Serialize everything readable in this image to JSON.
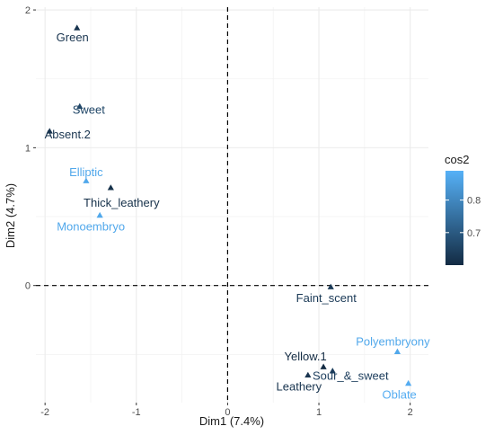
{
  "chart_data": {
    "type": "scatter",
    "xlabel": "Dim1 (7.4%)",
    "ylabel": "Dim2 (4.7%)",
    "xlim": [
      -2.1,
      2.2
    ],
    "ylim": [
      -0.85,
      2.02
    ],
    "xticks": [
      -2,
      -1,
      0,
      1,
      2
    ],
    "yticks": [
      0,
      1,
      2
    ],
    "grid": true,
    "reference_lines": {
      "x": 0,
      "y": 0,
      "style": "dashed"
    },
    "marker": "triangle",
    "color_scale": {
      "title": "cos2",
      "min": 0.6,
      "max": 0.89,
      "ticks": [
        0.7,
        0.8
      ],
      "low_color": "#132b43",
      "high_color": "#56b1f7",
      "legend_position": "right"
    },
    "points": [
      {
        "label": "Green",
        "x": -1.65,
        "y": 1.87,
        "cos2": 0.62
      },
      {
        "label": "Sweet",
        "x": -1.62,
        "y": 1.3,
        "cos2": 0.66
      },
      {
        "label": "Absent.2",
        "x": -1.95,
        "y": 1.12,
        "cos2": 0.62
      },
      {
        "label": "Elliptic",
        "x": -1.55,
        "y": 0.76,
        "cos2": 0.87
      },
      {
        "label": "Thick_leathery",
        "x": -1.28,
        "y": 0.71,
        "cos2": 0.61
      },
      {
        "label": "Monoembryo",
        "x": -1.4,
        "y": 0.51,
        "cos2": 0.87
      },
      {
        "label": "Faint_scent",
        "x": 1.13,
        "y": -0.01,
        "cos2": 0.63
      },
      {
        "label": "Polyembryony",
        "x": 1.86,
        "y": -0.48,
        "cos2": 0.87
      },
      {
        "label": "Yellow.1",
        "x": 1.05,
        "y": -0.59,
        "cos2": 0.6
      },
      {
        "label": "Sour_&_sweet",
        "x": 1.15,
        "y": -0.62,
        "cos2": 0.64
      },
      {
        "label": "Leathery",
        "x": 0.88,
        "y": -0.65,
        "cos2": 0.62
      },
      {
        "label": "Oblate",
        "x": 1.98,
        "y": -0.71,
        "cos2": 0.88
      }
    ]
  }
}
